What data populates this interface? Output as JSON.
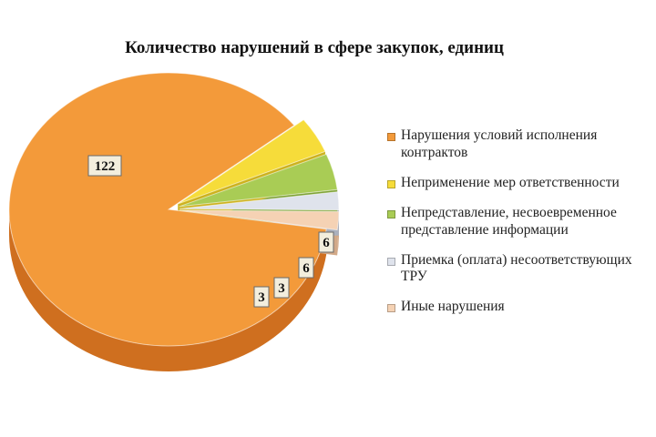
{
  "chart_data": {
    "type": "pie",
    "title": "Количество нарушений в сфере закупок, единиц",
    "categories": [
      "Нарушения условий исполнения контрактов",
      "Неприменение мер ответственности",
      "Непредставление, несвоевременное представление информации",
      "Приемка (оплата) несоответствующих ТРУ",
      "Иные нарушения"
    ],
    "values": [
      122,
      6,
      6,
      3,
      3
    ],
    "data_labels": [
      "122",
      "6",
      "6",
      "3",
      "3"
    ],
    "colors": [
      "#f39a3a",
      "#f6dc3a",
      "#a9cc55",
      "#dfe3ec",
      "#f5d2b4"
    ],
    "side_colors": [
      "#cf6f1f",
      "#cdb21e",
      "#7fa336",
      "#aab0bd",
      "#d2a988"
    ],
    "legend_position": "right",
    "style": "3d-exploded"
  }
}
